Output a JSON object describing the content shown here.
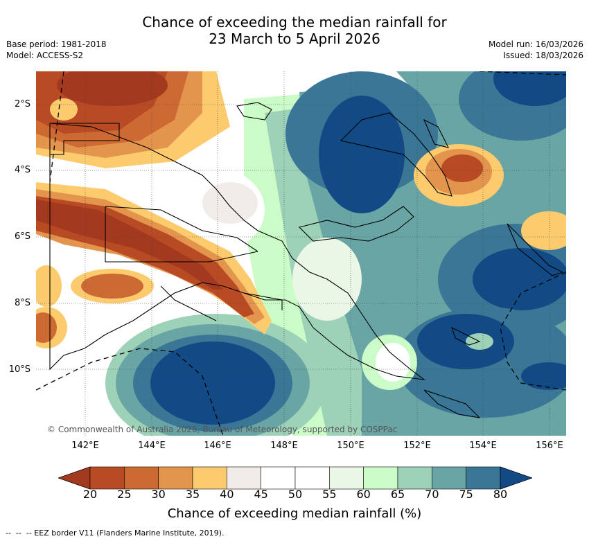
{
  "title": {
    "line1": "Chance of exceeding the median rainfall for",
    "line2": "23 March to 5 April 2026"
  },
  "meta_left": {
    "base_period": "Base period: 1981-2018",
    "model": "Model: ACCESS-S2"
  },
  "meta_right": {
    "model_run": "Model run: 16/03/2026",
    "issued": "Issued: 18/03/2026"
  },
  "map": {
    "lat_labels": [
      "2°S",
      "4°S",
      "6°S",
      "8°S",
      "10°S"
    ],
    "lon_labels": [
      "142°E",
      "144°E",
      "146°E",
      "148°E",
      "150°E",
      "152°E",
      "154°E",
      "156°E"
    ],
    "copyright": "© Commonwealth of Australia 2026, Bureau of Meteorology, supported by COSPPac"
  },
  "colorbar": {
    "ticks": [
      "20",
      "25",
      "30",
      "35",
      "40",
      "45",
      "50",
      "55",
      "60",
      "65",
      "70",
      "75",
      "80"
    ],
    "colors": [
      "#a3391e",
      "#b84a24",
      "#cd6a34",
      "#e3954e",
      "#fccb6e",
      "#f1ece7",
      "#ffffff",
      "#ffffff",
      "#eaf6e6",
      "#cbfcc8",
      "#9dd2b8",
      "#6aa5a5",
      "#3a7696",
      "#114a84"
    ],
    "label": "Chance of exceeding median rainfall (%)"
  },
  "footer": {
    "legend_text": "-- EEZ border V11 (Flanders Marine Institute, 2019)."
  }
}
